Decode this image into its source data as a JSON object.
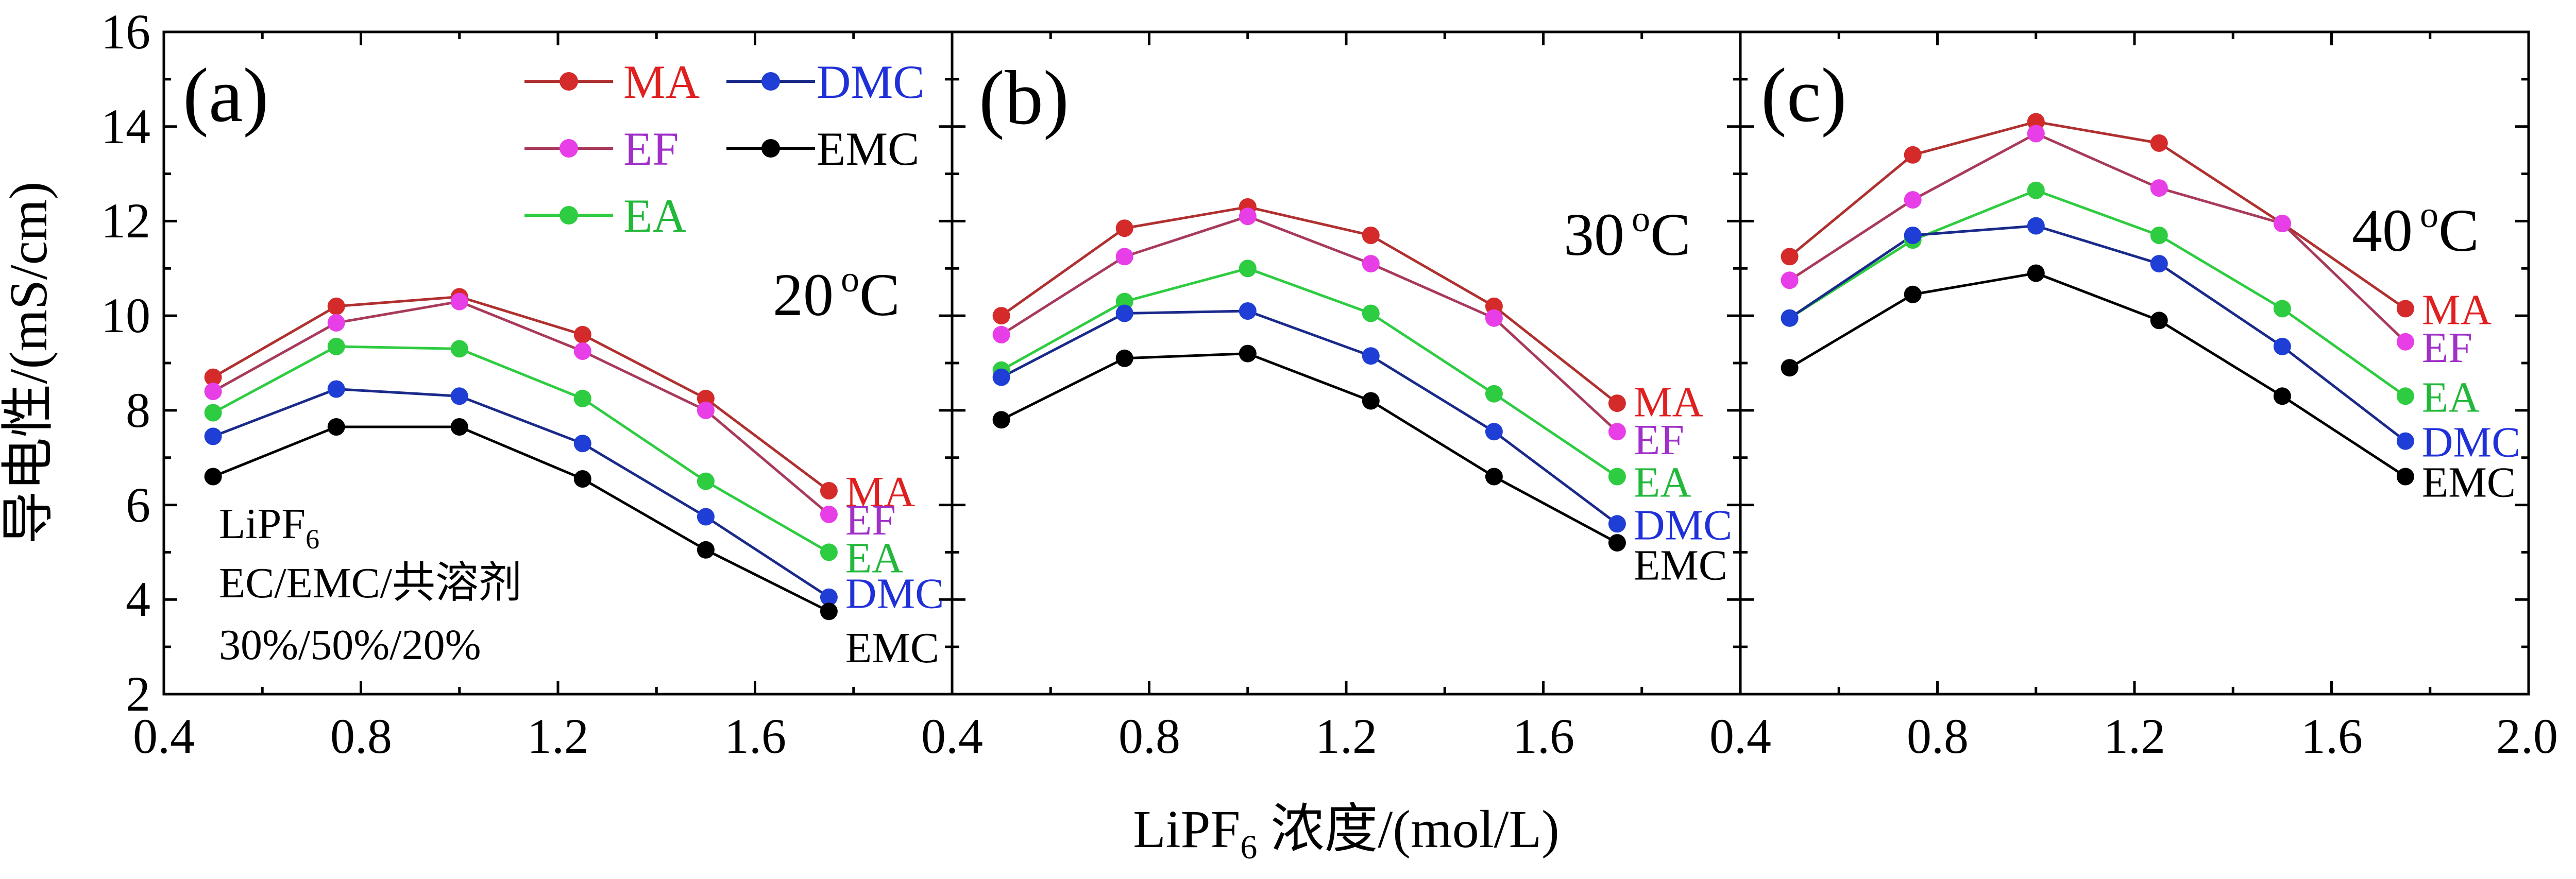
{
  "figure": {
    "ylabel": "导电性/(mS/cm)",
    "xlabel_main": "LiPF",
    "xlabel_sub": "6",
    "xlabel_rest": " 浓度/(mol/L)",
    "yticks": [
      "2",
      "4",
      "6",
      "8",
      "10",
      "12",
      "14",
      "16"
    ],
    "xticks_a": [
      "0.4",
      "0.8",
      "1.2",
      "1.6"
    ],
    "xticks_b": [
      "0.4",
      "0.8",
      "1.2",
      "1.6"
    ],
    "xticks_c": [
      "0.4",
      "0.8",
      "1.2",
      "1.6",
      "2.0"
    ],
    "legend": {
      "ma": "MA",
      "dmc": "DMC",
      "ef": "EF",
      "emc": "EMC",
      "ea": "EA"
    },
    "note": {
      "line1_main": "LiPF",
      "line1_sub": "6",
      "line2": "EC/EMC/共溶剂",
      "line3": "30%/50%/20%"
    },
    "panels": {
      "a": {
        "label": "(a)",
        "temp_num": "20",
        "temp_sup": "o",
        "temp_unit": "C"
      },
      "b": {
        "label": "(b)",
        "temp_num": "30",
        "temp_sup": "o",
        "temp_unit": "C"
      },
      "c": {
        "label": "(c)",
        "temp_num": "40",
        "temp_sup": "o",
        "temp_unit": "C"
      }
    }
  },
  "chart_data": [
    {
      "type": "line",
      "panel": "(a)",
      "temperature": "20 oC",
      "xlabel": "LiPF6 浓度/(mol/L)",
      "ylabel": "导电性/(mS/cm)",
      "xlim": [
        0.4,
        2.0
      ],
      "ylim": [
        2,
        16
      ],
      "x": [
        0.5,
        0.75,
        1.0,
        1.25,
        1.5,
        1.75
      ],
      "series": [
        {
          "name": "MA",
          "color": "#d42a2a",
          "line_color": "#b03030",
          "values": [
            8.7,
            10.2,
            10.4,
            9.6,
            8.25,
            6.3
          ]
        },
        {
          "name": "EF",
          "color": "#e83ee8",
          "line_color": "#a83a5a",
          "values": [
            8.4,
            9.85,
            10.3,
            9.25,
            8.0,
            5.8
          ]
        },
        {
          "name": "EA",
          "color": "#2ecc40",
          "line_color": "#2ecc40",
          "values": [
            7.95,
            9.35,
            9.3,
            8.25,
            6.5,
            5.0
          ]
        },
        {
          "name": "DMC",
          "color": "#1f3ed6",
          "line_color": "#1a2a8a",
          "values": [
            7.45,
            8.45,
            8.3,
            7.3,
            5.75,
            4.05
          ]
        },
        {
          "name": "EMC",
          "color": "#000000",
          "line_color": "#000000",
          "values": [
            6.6,
            7.65,
            7.65,
            6.55,
            5.05,
            3.75
          ]
        }
      ]
    },
    {
      "type": "line",
      "panel": "(b)",
      "temperature": "30 oC",
      "xlabel": "LiPF6 浓度/(mol/L)",
      "ylabel": "导电性/(mS/cm)",
      "xlim": [
        0.4,
        2.0
      ],
      "ylim": [
        2,
        16
      ],
      "x": [
        0.5,
        0.75,
        1.0,
        1.25,
        1.5,
        1.75
      ],
      "series": [
        {
          "name": "MA",
          "color": "#d42a2a",
          "line_color": "#b03030",
          "values": [
            10.0,
            11.85,
            12.3,
            11.7,
            10.2,
            8.15
          ]
        },
        {
          "name": "EF",
          "color": "#e83ee8",
          "line_color": "#a83a5a",
          "values": [
            9.6,
            11.25,
            12.1,
            11.1,
            9.95,
            7.55
          ]
        },
        {
          "name": "EA",
          "color": "#2ecc40",
          "line_color": "#2ecc40",
          "values": [
            8.85,
            10.3,
            11.0,
            10.05,
            8.35,
            6.6
          ]
        },
        {
          "name": "DMC",
          "color": "#1f3ed6",
          "line_color": "#1a2a8a",
          "values": [
            8.7,
            10.05,
            10.1,
            9.15,
            7.55,
            5.6
          ]
        },
        {
          "name": "EMC",
          "color": "#000000",
          "line_color": "#000000",
          "values": [
            7.8,
            9.1,
            9.2,
            8.2,
            6.6,
            5.2
          ]
        }
      ]
    },
    {
      "type": "line",
      "panel": "(c)",
      "temperature": "40 oC",
      "xlabel": "LiPF6 浓度/(mol/L)",
      "ylabel": "导电性/(mS/cm)",
      "xlim": [
        0.4,
        2.0
      ],
      "ylim": [
        2,
        16
      ],
      "x": [
        0.5,
        0.75,
        1.0,
        1.25,
        1.5,
        1.75
      ],
      "series": [
        {
          "name": "MA",
          "color": "#d42a2a",
          "line_color": "#b03030",
          "values": [
            11.25,
            13.4,
            14.1,
            13.65,
            11.95,
            10.15
          ]
        },
        {
          "name": "EF",
          "color": "#e83ee8",
          "line_color": "#a83a5a",
          "values": [
            10.75,
            12.45,
            13.85,
            12.7,
            11.95,
            9.45
          ]
        },
        {
          "name": "EA",
          "color": "#2ecc40",
          "line_color": "#2ecc40",
          "values": [
            9.95,
            11.6,
            12.65,
            11.7,
            10.15,
            8.3
          ]
        },
        {
          "name": "DMC",
          "color": "#1f3ed6",
          "line_color": "#1a2a8a",
          "values": [
            9.95,
            11.7,
            11.9,
            11.1,
            9.35,
            7.35
          ]
        },
        {
          "name": "EMC",
          "color": "#000000",
          "line_color": "#000000",
          "values": [
            8.9,
            10.45,
            10.9,
            9.9,
            8.3,
            6.6
          ]
        }
      ]
    }
  ]
}
